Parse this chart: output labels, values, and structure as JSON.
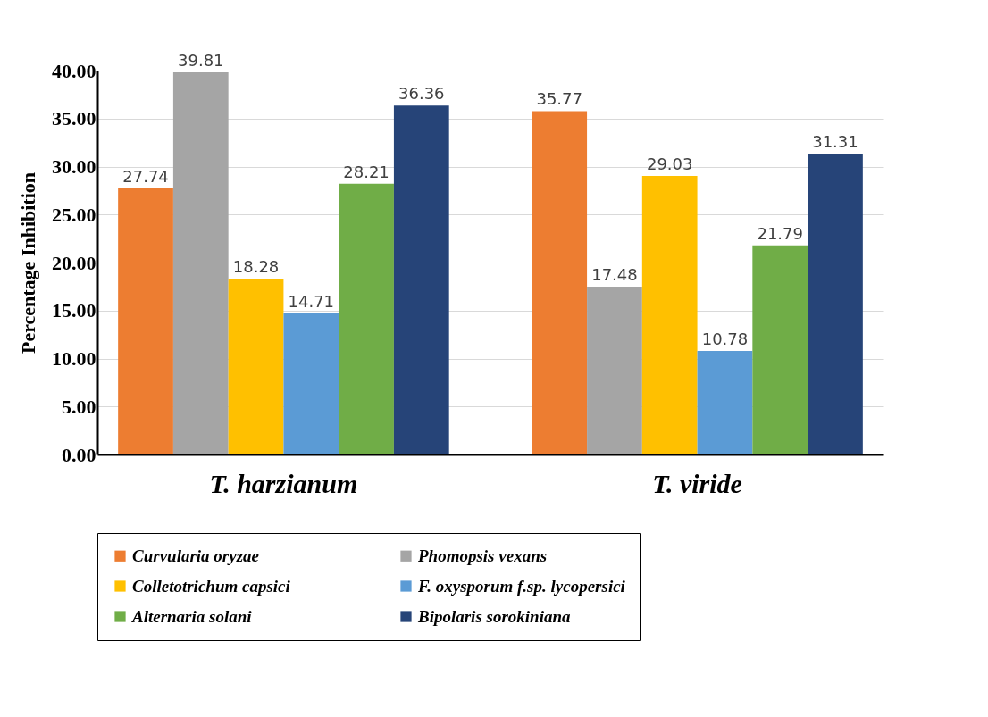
{
  "chart_data": {
    "type": "bar",
    "ylabel": "Percentage Inhibition",
    "categories": [
      "T. harzianum",
      "T. viride"
    ],
    "series": [
      {
        "name": "Curvularia oryzae",
        "color": "#ed7d31",
        "values": [
          27.74,
          35.77
        ]
      },
      {
        "name": "Phomopsis vexans",
        "color": "#a5a5a5",
        "values": [
          39.81,
          17.48
        ]
      },
      {
        "name": "Colletotrichum capsici",
        "color": "#ffc000",
        "values": [
          18.28,
          29.03
        ]
      },
      {
        "name": "F. oxysporum f.sp. lycopersici",
        "color": "#5b9bd5",
        "values": [
          14.71,
          10.78
        ]
      },
      {
        "name": "Alternaria solani",
        "color": "#70ad47",
        "values": [
          28.21,
          21.79
        ]
      },
      {
        "name": "Bipolaris sorokiniana",
        "color": "#264478",
        "values": [
          36.36,
          31.31
        ]
      }
    ],
    "ylim": [
      0,
      40
    ],
    "yticks": [
      {
        "value": 0,
        "label": "0.00"
      },
      {
        "value": 5,
        "label": "5.00"
      },
      {
        "value": 10,
        "label": "10.00"
      },
      {
        "value": 15,
        "label": "15.00"
      },
      {
        "value": 20,
        "label": "20.00"
      },
      {
        "value": 25,
        "label": "25.00"
      },
      {
        "value": 30,
        "label": "30.00"
      },
      {
        "value": 35,
        "label": "35.00"
      },
      {
        "value": 40,
        "label": "40.00"
      }
    ],
    "grid": "y",
    "legend": "bottom",
    "data_labels": true
  }
}
